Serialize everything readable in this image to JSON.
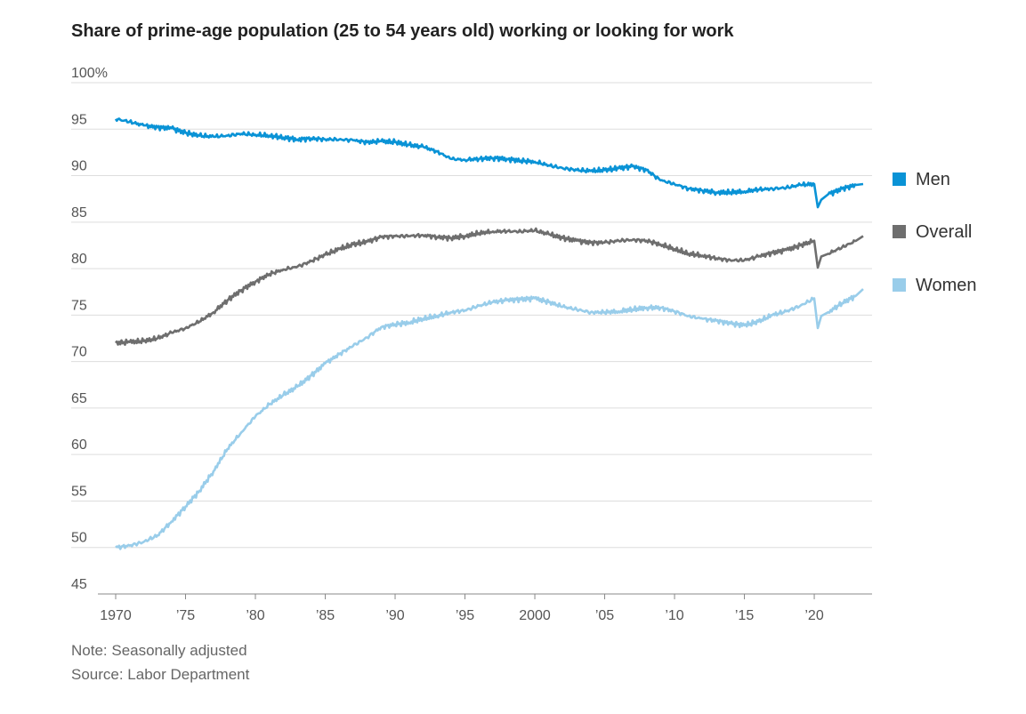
{
  "title": "Share of prime-age population (25 to 54 years old) working or looking for work",
  "note": "Note: Seasonally adjusted",
  "source": "Source: Labor Department",
  "chart_data": {
    "type": "line",
    "title": "Share of prime-age population (25 to 54 years old) working or looking for work",
    "ylim": [
      45,
      100
    ],
    "xlim": [
      1970,
      2023.5
    ],
    "y_ticks": [
      100,
      95,
      90,
      85,
      80,
      75,
      70,
      65,
      60,
      55,
      50,
      45
    ],
    "y_tick_labels": [
      "100%",
      "95",
      "90",
      "85",
      "80",
      "75",
      "70",
      "65",
      "60",
      "55",
      "50",
      "45"
    ],
    "x_ticks": [
      1970,
      1975,
      1980,
      1985,
      1990,
      1995,
      2000,
      2005,
      2010,
      2015,
      2020
    ],
    "x_tick_labels": [
      "1970",
      "’75",
      "’80",
      "’85",
      "’90",
      "’95",
      "2000",
      "’05",
      "’10",
      "’15",
      "’20"
    ],
    "grid": true,
    "legend_position": "right",
    "series": [
      {
        "name": "Men",
        "color": "#0a93d6",
        "x": [
          1970,
          1971,
          1972,
          1973,
          1974,
          1975,
          1976,
          1977,
          1978,
          1979,
          1980,
          1981,
          1982,
          1983,
          1984,
          1985,
          1986,
          1987,
          1988,
          1989,
          1990,
          1991,
          1992,
          1993,
          1994,
          1995,
          1996,
          1997,
          1998,
          1999,
          2000,
          2001,
          2002,
          2003,
          2004,
          2005,
          2006,
          2007,
          2008,
          2009,
          2010,
          2011,
          2012,
          2013,
          2014,
          2015,
          2016,
          2017,
          2018,
          2019,
          2020,
          2020.25,
          2020.5,
          2021,
          2022,
          2023,
          2023.5
        ],
        "values": [
          96.1,
          95.8,
          95.4,
          95.2,
          95.1,
          94.6,
          94.3,
          94.2,
          94.3,
          94.5,
          94.4,
          94.3,
          94.1,
          93.9,
          94.0,
          93.9,
          93.9,
          93.8,
          93.6,
          93.7,
          93.6,
          93.3,
          93.1,
          92.6,
          91.8,
          91.7,
          91.8,
          91.9,
          91.8,
          91.6,
          91.5,
          91.1,
          90.8,
          90.6,
          90.5,
          90.6,
          90.8,
          91.0,
          90.6,
          89.5,
          89.1,
          88.6,
          88.4,
          88.2,
          88.2,
          88.3,
          88.5,
          88.6,
          88.7,
          89.0,
          89.1,
          86.6,
          87.4,
          88.0,
          88.6,
          89.0,
          89.1
        ]
      },
      {
        "name": "Overall",
        "color": "#6e6e6e",
        "x": [
          1970,
          1971,
          1972,
          1973,
          1974,
          1975,
          1976,
          1977,
          1978,
          1979,
          1980,
          1981,
          1982,
          1983,
          1984,
          1985,
          1986,
          1987,
          1988,
          1989,
          1990,
          1991,
          1992,
          1993,
          1994,
          1995,
          1996,
          1997,
          1998,
          1999,
          2000,
          2001,
          2002,
          2003,
          2004,
          2005,
          2006,
          2007,
          2008,
          2009,
          2010,
          2011,
          2012,
          2013,
          2014,
          2015,
          2016,
          2017,
          2018,
          2019,
          2020,
          2020.25,
          2020.5,
          2021,
          2022,
          2023,
          2023.5
        ],
        "values": [
          72.0,
          72.1,
          72.2,
          72.5,
          73.1,
          73.6,
          74.3,
          75.3,
          76.6,
          77.7,
          78.6,
          79.4,
          79.9,
          80.2,
          80.8,
          81.5,
          82.1,
          82.6,
          82.9,
          83.4,
          83.5,
          83.5,
          83.6,
          83.4,
          83.3,
          83.5,
          83.8,
          84.0,
          84.0,
          84.0,
          84.1,
          83.7,
          83.3,
          83.0,
          82.8,
          82.8,
          83.0,
          83.1,
          83.0,
          82.6,
          82.1,
          81.6,
          81.4,
          81.1,
          80.9,
          80.9,
          81.3,
          81.7,
          82.0,
          82.5,
          83.0,
          80.1,
          81.3,
          81.6,
          82.3,
          83.0,
          83.5
        ]
      },
      {
        "name": "Women",
        "color": "#99cdea",
        "x": [
          1970,
          1971,
          1972,
          1973,
          1974,
          1975,
          1976,
          1977,
          1978,
          1979,
          1980,
          1981,
          1982,
          1983,
          1984,
          1985,
          1986,
          1987,
          1988,
          1989,
          1990,
          1991,
          1992,
          1993,
          1994,
          1995,
          1996,
          1997,
          1998,
          1999,
          2000,
          2001,
          2002,
          2003,
          2004,
          2005,
          2006,
          2007,
          2008,
          2009,
          2010,
          2011,
          2012,
          2013,
          2014,
          2015,
          2016,
          2017,
          2018,
          2019,
          2020,
          2020.25,
          2020.5,
          2021,
          2022,
          2023,
          2023.5
        ],
        "values": [
          50.0,
          50.2,
          50.6,
          51.3,
          52.8,
          54.4,
          56.1,
          58.2,
          60.6,
          62.4,
          64.1,
          65.4,
          66.4,
          67.3,
          68.5,
          69.8,
          70.8,
          71.7,
          72.6,
          73.7,
          74.0,
          74.2,
          74.6,
          74.9,
          75.3,
          75.5,
          76.0,
          76.4,
          76.6,
          76.7,
          76.8,
          76.4,
          75.9,
          75.6,
          75.3,
          75.3,
          75.4,
          75.6,
          75.8,
          75.8,
          75.4,
          74.9,
          74.6,
          74.4,
          74.1,
          73.9,
          74.3,
          75.0,
          75.4,
          76.0,
          76.8,
          73.6,
          74.9,
          75.3,
          76.3,
          77.1,
          77.8
        ]
      }
    ]
  }
}
